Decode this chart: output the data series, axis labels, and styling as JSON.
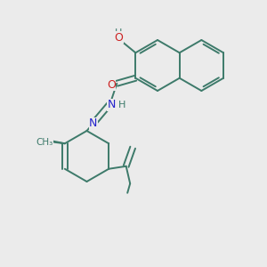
{
  "bg_color": "#ebebeb",
  "bond_color": "#3d7a6a",
  "O_color": "#cc2222",
  "N_color": "#2222cc",
  "figsize": [
    3.0,
    3.0
  ],
  "dpi": 100,
  "xlim": [
    0,
    10
  ],
  "ylim": [
    0,
    10
  ]
}
